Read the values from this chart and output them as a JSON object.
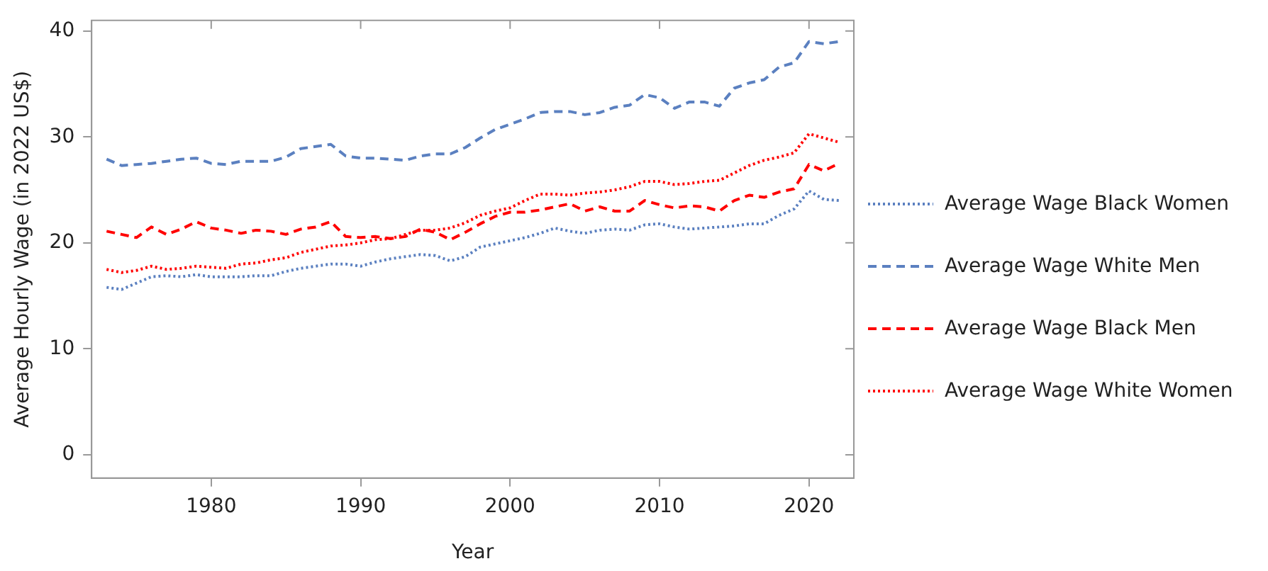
{
  "chart_data": {
    "type": "line",
    "xlabel": "Year",
    "ylabel": "Average Hourly Wage (in 2022 US$)",
    "x": [
      1973,
      1974,
      1975,
      1976,
      1977,
      1978,
      1979,
      1980,
      1981,
      1982,
      1983,
      1984,
      1985,
      1986,
      1987,
      1988,
      1989,
      1990,
      1991,
      1992,
      1993,
      1994,
      1995,
      1996,
      1997,
      1998,
      1999,
      2000,
      2001,
      2002,
      2003,
      2004,
      2005,
      2006,
      2007,
      2008,
      2009,
      2010,
      2011,
      2012,
      2013,
      2014,
      2015,
      2016,
      2017,
      2018,
      2019,
      2020,
      2021,
      2022
    ],
    "series": [
      {
        "name": "Average Wage Black Women",
        "color": "#5b80c0",
        "line_style": "dotted",
        "values": [
          15.8,
          15.6,
          16.2,
          16.8,
          16.9,
          16.8,
          17.0,
          16.8,
          16.8,
          16.8,
          16.9,
          16.9,
          17.3,
          17.6,
          17.8,
          18.0,
          18.0,
          17.8,
          18.2,
          18.5,
          18.7,
          18.9,
          18.8,
          18.3,
          18.7,
          19.6,
          19.9,
          20.2,
          20.5,
          20.9,
          21.4,
          21.1,
          20.9,
          21.2,
          21.3,
          21.2,
          21.7,
          21.8,
          21.5,
          21.3,
          21.4,
          21.5,
          21.6,
          21.8,
          21.8,
          22.6,
          23.2,
          24.9,
          24.1,
          24.0
        ]
      },
      {
        "name": "Average Wage White Men",
        "color": "#5b80c0",
        "line_style": "dashed",
        "values": [
          27.9,
          27.3,
          27.4,
          27.5,
          27.7,
          27.9,
          28.0,
          27.5,
          27.4,
          27.7,
          27.7,
          27.7,
          28.1,
          28.9,
          29.1,
          29.3,
          28.2,
          28.0,
          28.0,
          27.9,
          27.8,
          28.2,
          28.4,
          28.4,
          29.0,
          29.9,
          30.7,
          31.2,
          31.7,
          32.3,
          32.4,
          32.4,
          32.1,
          32.3,
          32.8,
          33.0,
          34.0,
          33.7,
          32.7,
          33.3,
          33.3,
          32.9,
          34.6,
          35.1,
          35.4,
          36.6,
          37.0,
          39.0,
          38.8,
          39.0
        ]
      },
      {
        "name": "Average Wage Black Men",
        "color": "#ff0000",
        "line_style": "dashed",
        "values": [
          21.1,
          20.8,
          20.5,
          21.5,
          20.8,
          21.3,
          22.0,
          21.4,
          21.2,
          20.9,
          21.2,
          21.1,
          20.8,
          21.3,
          21.5,
          22.0,
          20.6,
          20.5,
          20.6,
          20.4,
          20.6,
          21.3,
          21.0,
          20.3,
          21.0,
          21.8,
          22.5,
          22.9,
          22.9,
          23.1,
          23.4,
          23.7,
          23.0,
          23.4,
          23.0,
          23.0,
          24.0,
          23.6,
          23.3,
          23.5,
          23.4,
          23.0,
          24.0,
          24.5,
          24.3,
          24.8,
          25.1,
          27.4,
          26.8,
          27.5
        ]
      },
      {
        "name": "Average Wage White Women",
        "color": "#ff0000",
        "line_style": "dotted",
        "values": [
          17.5,
          17.2,
          17.4,
          17.8,
          17.5,
          17.6,
          17.8,
          17.7,
          17.6,
          18.0,
          18.1,
          18.4,
          18.6,
          19.1,
          19.4,
          19.7,
          19.8,
          20.0,
          20.3,
          20.4,
          20.8,
          21.2,
          21.2,
          21.4,
          21.9,
          22.6,
          23.0,
          23.3,
          24.0,
          24.6,
          24.6,
          24.5,
          24.7,
          24.8,
          25.0,
          25.3,
          25.8,
          25.8,
          25.5,
          25.6,
          25.8,
          25.9,
          26.6,
          27.3,
          27.8,
          28.1,
          28.5,
          30.3,
          29.9,
          29.5
        ]
      }
    ],
    "xlim": [
      1972,
      2023
    ],
    "xticks": [
      1980,
      1990,
      2000,
      2010,
      2020
    ],
    "ylim": [
      -2.2,
      41
    ],
    "yticks": [
      0,
      10,
      20,
      30,
      40
    ],
    "grid": false,
    "legend": "right",
    "marker": "none"
  }
}
